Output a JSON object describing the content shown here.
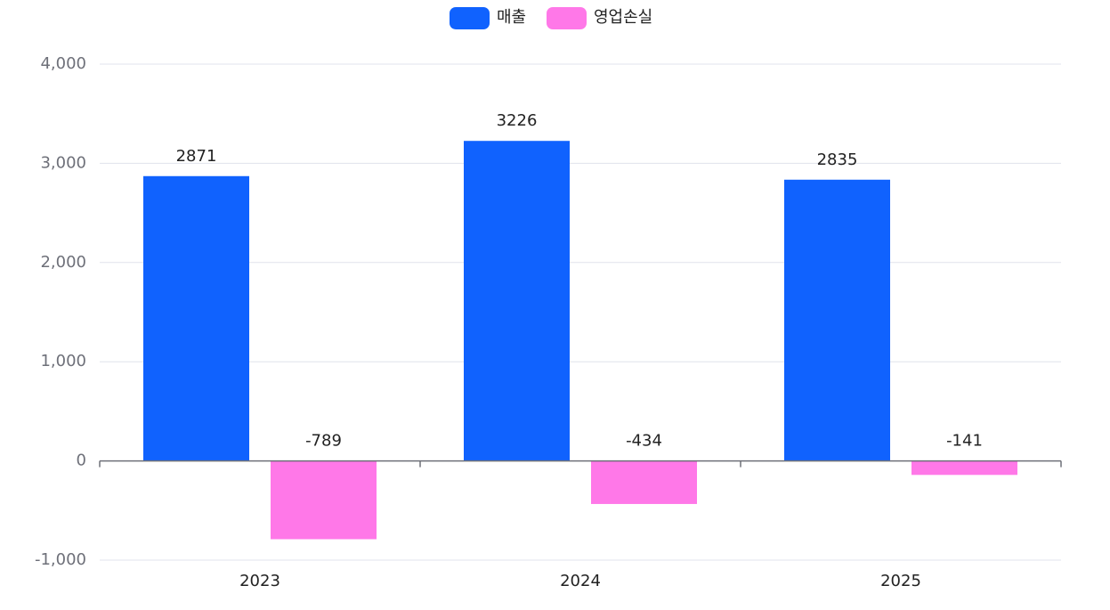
{
  "chart_data": {
    "type": "bar",
    "categories": [
      "2023",
      "2024",
      "2025"
    ],
    "series": [
      {
        "name": "매출",
        "color": "#1062fe",
        "values": [
          2871,
          3226,
          2835
        ]
      },
      {
        "name": "영업손실",
        "color": "#ff78e8",
        "values": [
          -789,
          -434,
          -141
        ]
      }
    ],
    "ylim": [
      -1000,
      4000
    ],
    "yticks": [
      -1000,
      0,
      1000,
      2000,
      3000,
      4000
    ],
    "ytick_labels": [
      "-1,000",
      "0",
      "1,000",
      "2,000",
      "3,000",
      "4,000"
    ],
    "grid": true,
    "legend": "top-center",
    "data_labels": true
  }
}
